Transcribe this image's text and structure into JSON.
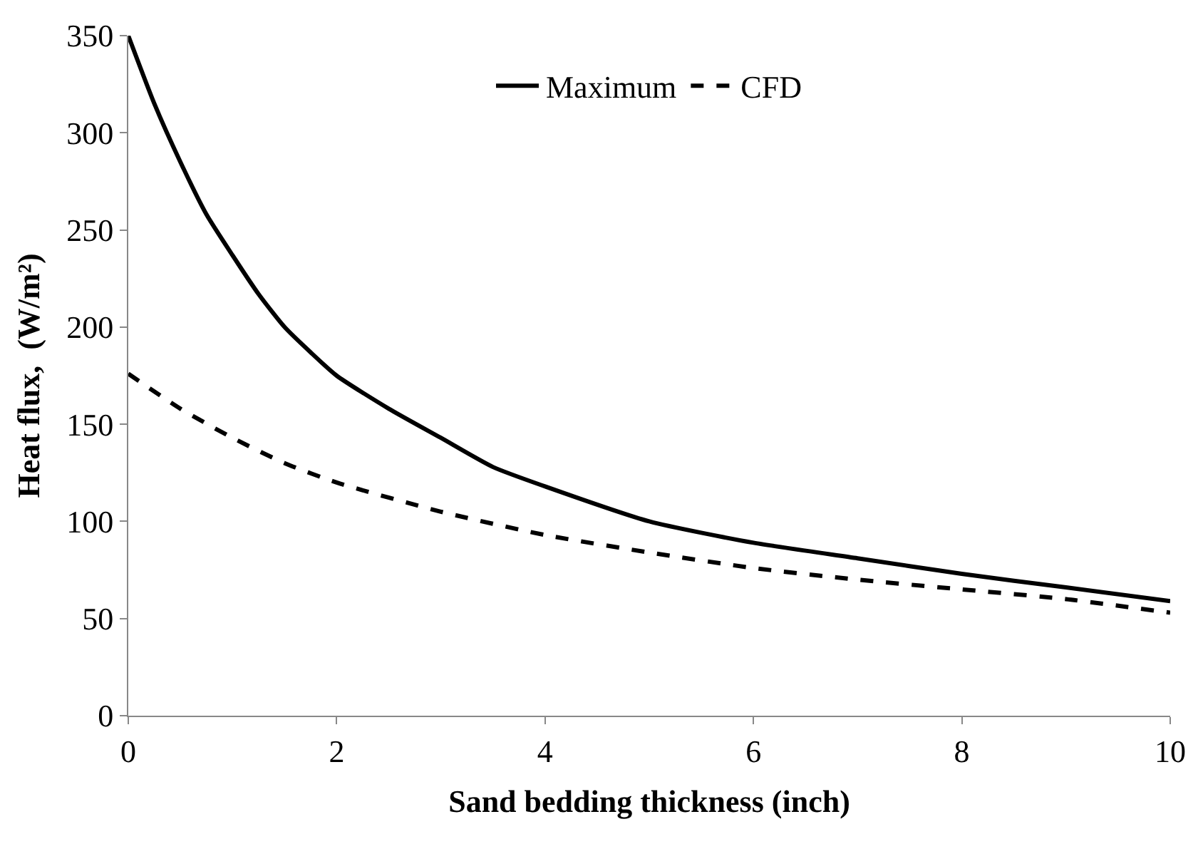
{
  "chart_data": {
    "type": "line",
    "xlabel": "Sand bedding thickness (inch)",
    "ylabel": "Heat flux,  (W/m²)",
    "xlim": [
      0,
      10
    ],
    "xticks": [
      0,
      2,
      4,
      6,
      8,
      10
    ],
    "ylim": [
      0,
      350
    ],
    "yticks": [
      0,
      50,
      100,
      150,
      200,
      250,
      300,
      350
    ],
    "grid": false,
    "legend": "top",
    "marker": "none",
    "series": [
      {
        "name": "Maximum",
        "color": "#000000",
        "line_style": "solid",
        "x": [
          0,
          0.25,
          0.5,
          0.75,
          1,
          1.25,
          1.5,
          1.75,
          2,
          2.5,
          3,
          3.5,
          4,
          5,
          6,
          7,
          8,
          9,
          10
        ],
        "values": [
          350,
          315,
          285,
          258,
          237,
          217,
          200,
          187,
          175,
          158,
          143,
          128,
          118,
          100,
          89,
          81,
          73,
          66,
          59
        ]
      },
      {
        "name": "CFD",
        "color": "#000000",
        "line_style": "dashed",
        "x": [
          0,
          0.5,
          1,
          1.5,
          2,
          3,
          4,
          5,
          6,
          7,
          8,
          9,
          10
        ],
        "values": [
          176,
          158,
          143,
          130,
          120,
          105,
          93,
          84,
          76,
          70,
          65,
          60,
          53
        ]
      }
    ]
  }
}
